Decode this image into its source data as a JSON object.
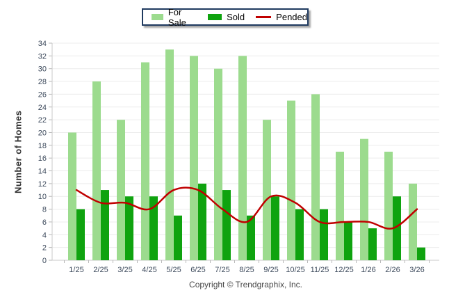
{
  "chart_data": {
    "type": "bar+line",
    "title": "",
    "xlabel": "",
    "ylabel": "Number of Homes",
    "ylim": [
      0,
      34
    ],
    "ytick_step": 2,
    "grid": true,
    "legend_position": "top-center",
    "categories": [
      "1/25",
      "2/25",
      "3/25",
      "4/25",
      "5/25",
      "6/25",
      "7/25",
      "8/25",
      "9/25",
      "10/25",
      "11/25",
      "12/25",
      "1/26",
      "2/26",
      "3/26"
    ],
    "series": [
      {
        "name": "For Sale",
        "type": "bar",
        "color": "#9CDB8E",
        "values": [
          20,
          28,
          22,
          31,
          33,
          32,
          30,
          32,
          22,
          25,
          26,
          17,
          19,
          17,
          12
        ]
      },
      {
        "name": "Sold",
        "type": "bar",
        "color": "#0FA30F",
        "values": [
          8,
          11,
          10,
          10,
          7,
          12,
          11,
          7,
          10,
          8,
          8,
          6,
          5,
          10,
          2
        ]
      },
      {
        "name": "Pended",
        "type": "line",
        "color": "#C00000",
        "values": [
          11,
          9,
          9,
          8,
          11,
          11,
          8,
          6,
          10,
          9,
          6,
          6,
          6,
          5,
          8
        ]
      }
    ],
    "style": {
      "grid_color": "#ececec",
      "axis_color": "#c9c9c9",
      "tick_color": "#b8b8b8",
      "tick_label_color": "#3d4a5c",
      "legend_border_color": "#1F3A5F"
    }
  },
  "footer": {
    "text": "Copyright © Trendgraphix, Inc."
  }
}
